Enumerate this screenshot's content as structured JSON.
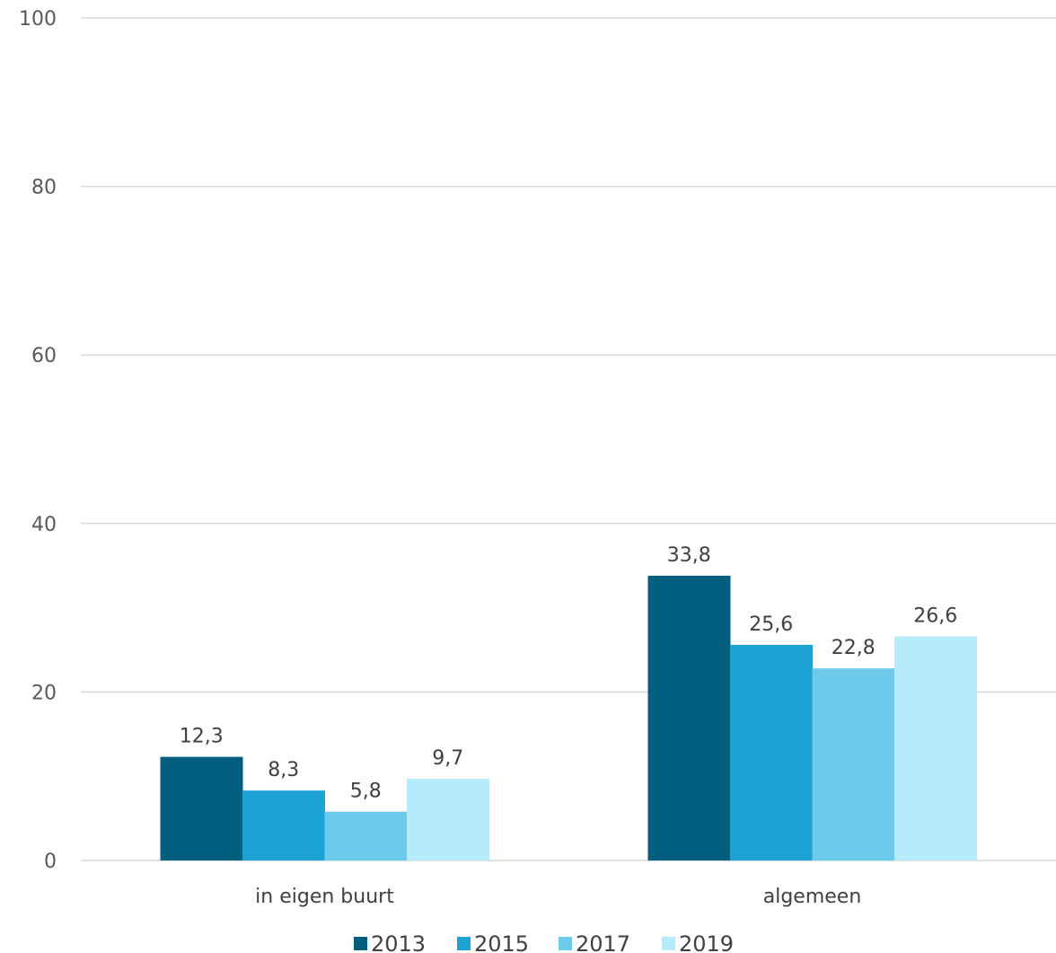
{
  "chart_data": {
    "type": "bar",
    "categories": [
      "in eigen buurt",
      "algemeen"
    ],
    "series": [
      {
        "name": "2013",
        "values": [
          12.3,
          33.8
        ],
        "labels": [
          "12,3",
          "33,8"
        ],
        "color": "#005f7e"
      },
      {
        "name": "2015",
        "values": [
          8.3,
          25.6
        ],
        "labels": [
          "8,3",
          "25,6"
        ],
        "color": "#1ca3d3"
      },
      {
        "name": "2017",
        "values": [
          5.8,
          22.8
        ],
        "labels": [
          "5,8",
          "22,8"
        ],
        "color": "#6dcaeb"
      },
      {
        "name": "2019",
        "values": [
          9.7,
          26.6
        ],
        "labels": [
          "9,7",
          "26,6"
        ],
        "color": "#b5ebfb"
      }
    ],
    "ylim": [
      0,
      100
    ],
    "yticks": [
      "0",
      "20",
      "40",
      "60",
      "80",
      "100"
    ],
    "title": "",
    "xlabel": "",
    "ylabel": "",
    "grid": true,
    "legend": "bottom"
  }
}
